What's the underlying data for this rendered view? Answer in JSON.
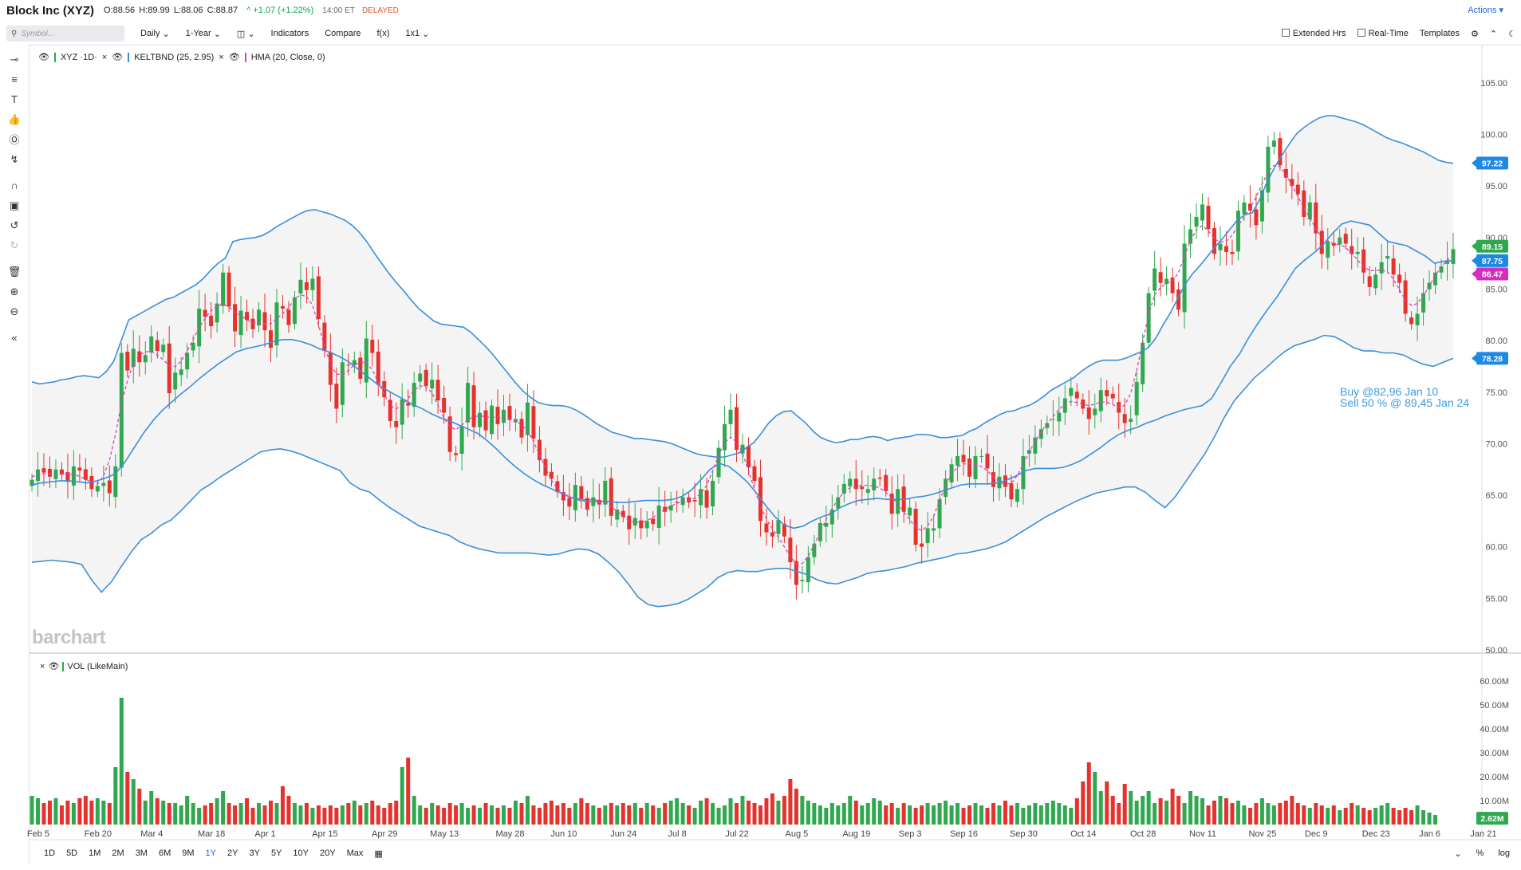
{
  "header": {
    "title": "Block Inc (XYZ)",
    "open": "O:88.56",
    "high": "H:89.99",
    "low": "L:88.06",
    "close": "C:88.87",
    "change": "^ +1.07 (+1.22%)",
    "time": "14:00 ET",
    "status": "DELAYED",
    "actions": "Actions"
  },
  "toolbar": {
    "search_placeholder": "Symbol...",
    "interval": "Daily",
    "range": "1-Year",
    "indicators": "Indicators",
    "compare": "Compare",
    "fx": "f(x)",
    "layout": "1x1",
    "extended_hours": "Extended Hrs",
    "real_time": "Real-Time",
    "templates": "Templates"
  },
  "legend": {
    "symbol": "XYZ ·1D·",
    "keltner": "KELTBND (25, 2.95)",
    "hma": "HMA (20, Close, 0)",
    "volume": "VOL (LikeMain)"
  },
  "watermark": "barchart",
  "annotation": [
    "Buy @82,96 Jan 10",
    "Sell 50 % @ 89,45 Jan 24"
  ],
  "periods": [
    "1D",
    "5D",
    "1M",
    "2M",
    "3M",
    "6M",
    "9M",
    "1Y",
    "2Y",
    "3Y",
    "5Y",
    "10Y",
    "20Y",
    "Max"
  ],
  "active_period": "1Y",
  "bottom_right": [
    "%",
    "log"
  ],
  "colors": {
    "up": "#2fa84f",
    "down": "#e5322d",
    "band": "#3b8fd9",
    "hma": "#e040b8",
    "fill": "#f4f4f4"
  },
  "chart_data": {
    "type": "candlestick",
    "price_axis": {
      "ticks": [
        "105.00",
        "100.00",
        "95.00",
        "90.00",
        "85.00",
        "80.00",
        "75.00",
        "70.00",
        "65.00",
        "60.00",
        "55.00",
        "50.00"
      ],
      "ylim": [
        50,
        107
      ]
    },
    "volume_axis": {
      "ticks": [
        "60.00M",
        "50.00M",
        "40.00M",
        "30.00M",
        "20.00M",
        "10.00M"
      ],
      "ylim": [
        0,
        63
      ]
    },
    "x_labels": [
      "Feb 5",
      "Feb 20",
      "Mar 4",
      "Mar 18",
      "Apr 1",
      "Apr 15",
      "Apr 29",
      "May 13",
      "May 28",
      "Jun 10",
      "Jun 24",
      "Jul 8",
      "Jul 22",
      "Aug 5",
      "Aug 19",
      "Sep 3",
      "Sep 16",
      "Sep 30",
      "Oct 14",
      "Oct 28",
      "Nov 11",
      "Nov 25",
      "Dec 9",
      "Dec 23",
      "Jan 6",
      "Jan 21"
    ],
    "x_label_index": [
      0,
      10,
      19,
      29,
      38,
      48,
      58,
      68,
      79,
      88,
      98,
      107,
      117,
      127,
      137,
      146,
      155,
      165,
      175,
      185,
      195,
      205,
      214,
      224,
      233,
      242
    ],
    "badges": [
      {
        "label": "97.22",
        "value": 97.22,
        "color": "#1e88e5"
      },
      {
        "label": "89.15",
        "value": 89.15,
        "color": "#2fa84f"
      },
      {
        "label": "87.75",
        "value": 87.75,
        "color": "#1e88e5"
      },
      {
        "label": "86.47",
        "value": 86.47,
        "color": "#d62dbf"
      },
      {
        "label": "78.28",
        "value": 78.28,
        "color": "#1e88e5"
      }
    ],
    "volume_badge": {
      "label": "2.62M",
      "value": 2.62
    },
    "closes": [
      66.5,
      67.5,
      67.2,
      66.8,
      67.5,
      67,
      66.3,
      67.8,
      67.4,
      66.5,
      65.6,
      65.9,
      66.2,
      65.2,
      67.8,
      78.8,
      77.1,
      79.2,
      77.9,
      78.6,
      80.4,
      79,
      79.6,
      74.9,
      76.9,
      77.2,
      78.8,
      79.8,
      83.1,
      82.3,
      81.4,
      83.6,
      86.6,
      83.3,
      80.9,
      82.9,
      82,
      81.1,
      83,
      81,
      79.3,
      83.7,
      83.1,
      81.5,
      84.2,
      85.9,
      84.9,
      86,
      82.1,
      79,
      75.7,
      73.4,
      77.9,
      77.6,
      78.1,
      76.3,
      80.2,
      78.8,
      75.7,
      74.5,
      72.2,
      71.6,
      74.3,
      73.7,
      75.9,
      76.8,
      75.6,
      76.2,
      74.2,
      73,
      69.2,
      68.9,
      71.7,
      75.9,
      71.6,
      73,
      71.3,
      73.7,
      71.9,
      73.3,
      72.3,
      72.4,
      70.6,
      74,
      70.5,
      68.4,
      66.9,
      66.6,
      65.3,
      64.5,
      63.9,
      66,
      64.6,
      63.6,
      64.8,
      64.1,
      66.4,
      63,
      63.6,
      62.9,
      61.7,
      62.8,
      61.8,
      62.5,
      62.2,
      64,
      63.4,
      64,
      64.3,
      64.8,
      64.3,
      64.4,
      65.6,
      63.8,
      66.4,
      69.6,
      71.9,
      73.3,
      69.4,
      69.9,
      67.7,
      66.4,
      62.5,
      61.4,
      61,
      62.6,
      61,
      58.5,
      56.3,
      56.8,
      59,
      60.3,
      62.3,
      62.3,
      63.6,
      64.8,
      66.1,
      66.6,
      65.6,
      65.6,
      65.6,
      66.6,
      66.6,
      65.4,
      63.2,
      65.6,
      63.4,
      63.8,
      60.2,
      60,
      61.8,
      61.8,
      64.6,
      66.6,
      68,
      68.8,
      68.2,
      66.8,
      68.8,
      68.8,
      67.6,
      65.8,
      66.8,
      65.8,
      64.6,
      65.6,
      68.8,
      69.4,
      70.6,
      71.4,
      72,
      72.4,
      73,
      74.4,
      75.4,
      74.4,
      73.4,
      72.4,
      73.4,
      75.2,
      74.6,
      74.4,
      73,
      72,
      72.4,
      76,
      79.8,
      84.6,
      87,
      85.6,
      86,
      84.6,
      83,
      89.4,
      90.8,
      92,
      93.2,
      90.8,
      88.4,
      89.4,
      88.6,
      88.4,
      92.6,
      93.4,
      92.6,
      91.2,
      94.6,
      98.8,
      99.4,
      97,
      95.8,
      95,
      94.2,
      92,
      93.4,
      90.4,
      88.4,
      89.6,
      89.2,
      90,
      89.4,
      88.4,
      88.6,
      86.6,
      85.2,
      86.4,
      87.6,
      88.2,
      86.4,
      85.6,
      82.6,
      81.6,
      82.6,
      84.6,
      85.6,
      86.6,
      87.2,
      87.8,
      88.87
    ],
    "ohlc_note": "open/high/low derived from closes for rendering",
    "upper_band": [
      76,
      75.8,
      75.9,
      76,
      76.2,
      76.3,
      76.5,
      76.6,
      76.5,
      76.4,
      77,
      78,
      80,
      82,
      82.4,
      82.8,
      83.2,
      83.6,
      84,
      84.2,
      84.6,
      85,
      85.4,
      86,
      86.8,
      87.5,
      88,
      89.6,
      89.8,
      89.9,
      90,
      90.2,
      90.6,
      91.1,
      91.5,
      91.9,
      92.3,
      92.6,
      92.7,
      92.5,
      92.3,
      92,
      91.7,
      91.2,
      90.5,
      89.6,
      88.5,
      87.5,
      86.5,
      85.6,
      84.8,
      83.9,
      83.1,
      82.5,
      81.9,
      81.6,
      81.5,
      81.4,
      81.3,
      80.8,
      80.1,
      79.4,
      78.6,
      77.7,
      76.8,
      75.9,
      75.1,
      74.5,
      74,
      73.8,
      73.7,
      73.7,
      73.6,
      73.3,
      72.9,
      72.4,
      71.9,
      71.5,
      71.1,
      70.9,
      70.7,
      70.5,
      70.5,
      70.4,
      70.3,
      70.2,
      70,
      69.7,
      69.4,
      69.1,
      68.9,
      68.8,
      68.7,
      68.7,
      68.9,
      69.1,
      69.6,
      70.1,
      71,
      72,
      72.7,
      73.1,
      73.2,
      72.6,
      72,
      71.2,
      70.6,
      70.3,
      70.1,
      70.2,
      70.4,
      70.4,
      70.6,
      70.7,
      70.6,
      70.3,
      70.5,
      70.6,
      70.7,
      70.9,
      70.9,
      70.8,
      70.6,
      70.6,
      70.7,
      70.8,
      71.2,
      71.5,
      72,
      72.4,
      72.8,
      73.1,
      73.2,
      73.5,
      73.7,
      74.1,
      74.6,
      75.2,
      75.6,
      76,
      76.4,
      77,
      77.5,
      77.9,
      78.1,
      78.1,
      78.1,
      78.3,
      78.6,
      78.9,
      79.3,
      80.2,
      81.5,
      82.7,
      84.1,
      85.5,
      86.5,
      87.3,
      88.2,
      89.1,
      89.9,
      90.8,
      91.7,
      92.2,
      92.4,
      93.7,
      95.4,
      96.8,
      98,
      99.1,
      100.1,
      100.7,
      101.2,
      101.6,
      101.8,
      101.8,
      101.6,
      101.4,
      101.2,
      100.9,
      100.5,
      100.1,
      99.7,
      99.4,
      99.2,
      98.9,
      98.6,
      98.3,
      97.9,
      97.5,
      97.3,
      97.2
    ],
    "middle_band": [
      66,
      66.2,
      66.3,
      66.4,
      66.4,
      66.3,
      66.2,
      66.4,
      66.7,
      67.1,
      68.2,
      69.6,
      71,
      72.2,
      73.2,
      74,
      74.8,
      75.5,
      76.3,
      77,
      77.7,
      78.3,
      78.9,
      79.2,
      79.4,
      79.6,
      79.9,
      80.1,
      80.1,
      79.9,
      79.6,
      79.2,
      78.9,
      78.5,
      78,
      77.3,
      76.6,
      75.9,
      75.3,
      74.8,
      74.3,
      73.8,
      73.4,
      72.9,
      72.5,
      72.2,
      71.8,
      71.4,
      71,
      70.3,
      69.5,
      68.6,
      67.8,
      67.1,
      66.5,
      66,
      65.6,
      65.2,
      64.8,
      64.5,
      64.4,
      64.4,
      64.4,
      64.3,
      64.3,
      64.4,
      64.5,
      64.5,
      64.5,
      64.6,
      64.9,
      65.5,
      66.5,
      67.5,
      68.1,
      67.8,
      67.1,
      66.3,
      65.2,
      64,
      62.9,
      62.1,
      61.8,
      62,
      62.5,
      62.9,
      63.2,
      63.8,
      64.2,
      64.5,
      64.6,
      64.7,
      64.6,
      64.6,
      64.6,
      64.8,
      64.9,
      65.1,
      65.4,
      65.7,
      66,
      66.1,
      66.1,
      66.1,
      66.2,
      66.5,
      66.9,
      67.4,
      67.6,
      67.6,
      67.6,
      67.7,
      68,
      68.4,
      69,
      69.6,
      70.3,
      70.9,
      71.3,
      71.6,
      72,
      72.3,
      72.7,
      73,
      73.3,
      73.5,
      73.7,
      74.4,
      75.9,
      77.5,
      78.7,
      80.3,
      81.7,
      83,
      84.2,
      85.6,
      87,
      87.8,
      88.5,
      89.3,
      90.4,
      91.3,
      91.6,
      91.4,
      91.2,
      90.4,
      89.6,
      89.4,
      89.2,
      88.7,
      88.2,
      87.5,
      87.7,
      87.75
    ],
    "lower_band": [
      58.5,
      58.6,
      58.7,
      58.6,
      58.5,
      58.3,
      56.8,
      55.6,
      56.6,
      58.1,
      59.5,
      60.7,
      61.3,
      62.1,
      62.6,
      63.5,
      64.5,
      65.5,
      66.1,
      66.8,
      67.4,
      68,
      68.6,
      69.2,
      69.4,
      69.5,
      69.3,
      69,
      68.6,
      68.2,
      67.8,
      67.4,
      66.2,
      65.6,
      65.3,
      64.5,
      63.8,
      63.2,
      62.6,
      62,
      61.7,
      61.4,
      61.1,
      60.5,
      60.1,
      59.8,
      59.6,
      59.4,
      59.4,
      59.4,
      59.4,
      59.3,
      59.2,
      59.3,
      59.6,
      59.8,
      59.7,
      59.3,
      58.5,
      57.6,
      56.4,
      55.1,
      54.4,
      54.2,
      54.3,
      54.5,
      54.9,
      55.5,
      56.1,
      57,
      57.5,
      57.7,
      57.6,
      57.6,
      57.8,
      57.9,
      57.9,
      57.6,
      57.3,
      56.8,
      56.5,
      56.4,
      56.7,
      57,
      57.4,
      57.6,
      57.7,
      57.9,
      58.1,
      58.4,
      58.6,
      58.8,
      59,
      59.3,
      59.4,
      59.6,
      59.8,
      60.1,
      60.5,
      61.1,
      61.7,
      62.3,
      62.9,
      63.4,
      63.9,
      64.4,
      64.8,
      65.2,
      65.4,
      65.6,
      65.8,
      65.8,
      65.3,
      64.5,
      63.8,
      64.8,
      66.2,
      67.6,
      69,
      70.7,
      72.6,
      74.2,
      75.3,
      76.4,
      77.2,
      78.1,
      78.9,
      79.5,
      79.8,
      80.1,
      80.5,
      80.4,
      79.9,
      79.3,
      79,
      79,
      78.8,
      78.8,
      78.6,
      78.1,
      77.7,
      77.5,
      77.9,
      78.28
    ],
    "volumes": [
      12,
      11,
      9,
      10,
      11,
      8,
      10,
      9,
      11,
      12,
      10,
      11,
      10,
      9,
      24,
      53,
      22,
      19,
      15,
      10,
      14,
      11,
      10,
      9,
      9,
      8,
      12,
      9,
      7,
      8,
      9,
      11,
      14,
      9,
      8,
      9,
      11,
      7,
      9,
      8,
      10,
      9,
      16,
      12,
      9,
      8,
      9,
      7,
      8,
      7,
      8,
      7,
      8,
      9,
      10,
      8,
      9,
      10,
      8,
      7,
      9,
      10,
      24,
      28,
      12,
      8,
      7,
      9,
      8,
      7,
      9,
      8,
      9,
      7,
      8,
      7,
      9,
      8,
      7,
      8,
      7,
      10,
      9,
      12,
      8,
      7,
      9,
      10,
      8,
      9,
      7,
      9,
      11,
      9,
      8,
      7,
      8,
      9,
      8,
      9,
      8,
      9,
      7,
      9,
      8,
      7,
      9,
      10,
      11,
      9,
      8,
      7,
      10,
      11,
      9,
      7,
      8,
      11,
      9,
      12,
      10,
      9,
      8,
      11,
      13,
      10,
      12,
      19,
      15,
      12,
      10,
      9,
      8,
      7,
      9,
      8,
      9,
      12,
      10,
      8,
      9,
      11,
      10,
      8,
      9,
      7,
      9,
      8,
      7,
      8,
      9,
      8,
      9,
      10,
      8,
      9,
      7,
      8,
      9,
      8,
      7,
      9,
      8,
      10,
      8,
      9,
      7,
      8,
      9,
      8,
      9,
      10,
      9,
      8,
      7,
      11,
      18,
      26,
      22,
      14,
      18,
      12,
      9,
      17,
      14,
      10,
      12,
      14,
      9,
      11,
      10,
      15,
      12,
      9,
      14,
      12,
      11,
      8,
      10,
      12,
      11,
      9,
      10,
      8,
      7,
      9,
      11,
      9,
      8,
      9,
      10,
      12,
      9,
      8,
      7,
      9,
      8,
      7,
      8,
      6,
      7,
      9,
      8,
      7,
      6,
      7,
      8,
      9,
      7,
      6,
      7,
      6,
      8,
      6,
      5,
      4
    ]
  }
}
